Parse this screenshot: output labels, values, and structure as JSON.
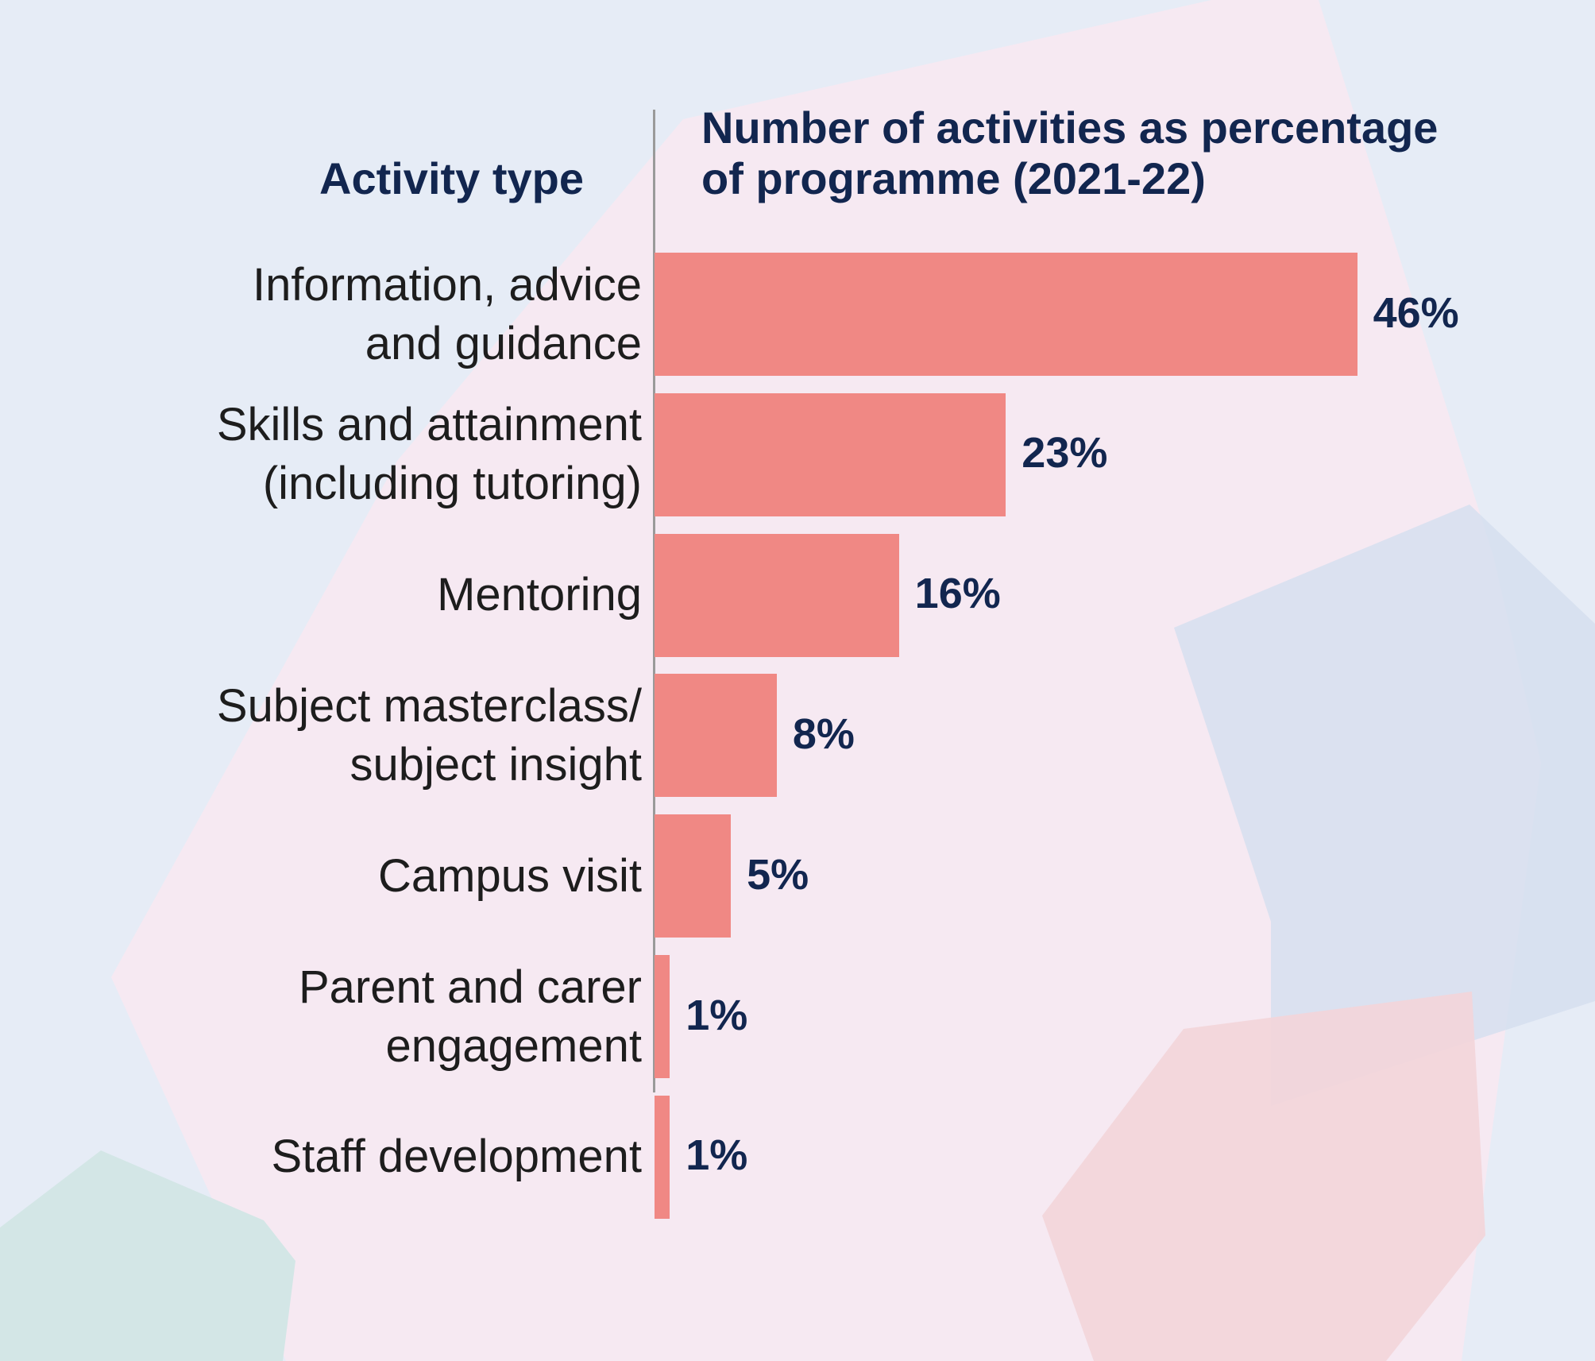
{
  "headers": {
    "activity_type": "Activity type",
    "value_line1": "Number of activities as percentage",
    "value_line2": "of programme (2021-22)"
  },
  "colors": {
    "bar": "#f08884",
    "text_dark": "#12264f",
    "axis": "#9a9a9a",
    "background": "#e6ecf6"
  },
  "chart_data": {
    "type": "bar",
    "orientation": "horizontal",
    "xlabel": "Number of activities as percentage of programme (2021-22)",
    "ylabel": "Activity type",
    "categories": [
      [
        "Information, advice",
        "and guidance"
      ],
      [
        "Skills and attainment",
        "(including tutoring)"
      ],
      [
        "Mentoring"
      ],
      [
        "Subject masterclass/",
        "subject insight"
      ],
      [
        "Campus visit"
      ],
      [
        "Parent and carer",
        "engagement"
      ],
      [
        "Staff development"
      ]
    ],
    "values": [
      46,
      23,
      16,
      8,
      5,
      1,
      1
    ],
    "value_labels": [
      "46%",
      "23%",
      "16%",
      "8%",
      "5%",
      "1%",
      "1%"
    ],
    "grid": false,
    "legend": "none"
  }
}
